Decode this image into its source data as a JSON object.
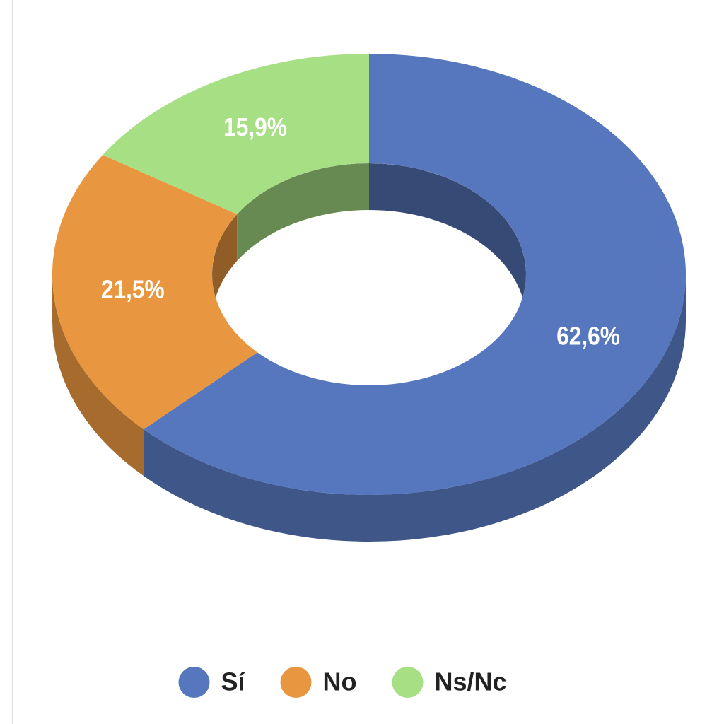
{
  "chart_data": {
    "type": "pie",
    "donut": true,
    "three_d": true,
    "categories": [
      "Sí",
      "No",
      "Ns/Nc"
    ],
    "values": [
      62.6,
      21.5,
      15.9
    ],
    "value_labels": [
      "62,6%",
      "21,5%",
      "15,9%"
    ],
    "colors": [
      "#5677bd",
      "#e8963f",
      "#a6df84"
    ],
    "legend": "bottom"
  }
}
